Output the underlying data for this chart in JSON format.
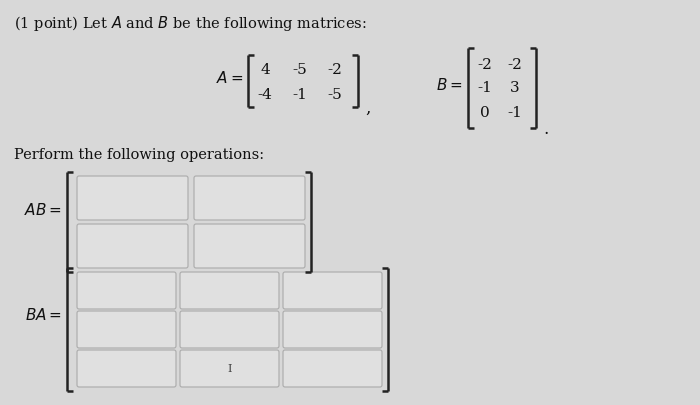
{
  "bg_color": "#d8d8d8",
  "title_text": "(1 point) Let $A$ and $B$ be the following matrices:",
  "A_matrix": [
    [
      4,
      -5,
      -2
    ],
    [
      -4,
      -1,
      -5
    ]
  ],
  "B_matrix": [
    [
      -2,
      -2
    ],
    [
      -1,
      3
    ],
    [
      0,
      -1
    ]
  ],
  "perform_text": "Perform the following operations:",
  "box_fill": "#e0e0e0",
  "box_edge": "#aaaaaa",
  "text_color": "#111111",
  "bracket_color": "#222222",
  "font_size_title": 10.5,
  "font_size_matrix": 11,
  "font_size_label": 11,
  "font_size_perform": 10.5
}
